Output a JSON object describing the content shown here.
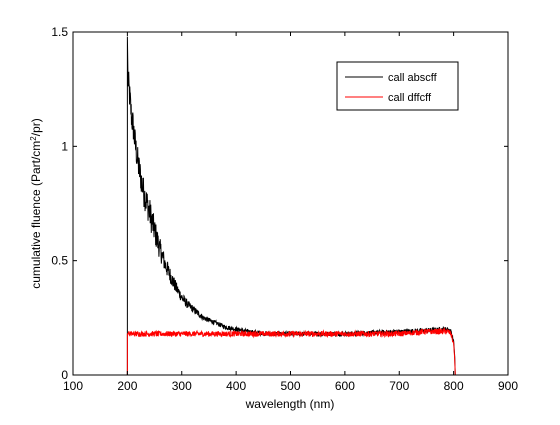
{
  "colors": {
    "figure_background": "#ffffff",
    "axes_background": "#ffffff",
    "axis_line": "#000000",
    "series_absorption": "#000000",
    "series_diffuse": "#ff0000"
  },
  "chart_data": {
    "type": "line",
    "title": "",
    "xlabel": "wavelength (nm)",
    "ylabel_parts": [
      "cumulative fluence (Part/cm",
      "2",
      "/pr)"
    ],
    "xlim": [
      100,
      900
    ],
    "ylim": [
      0,
      1.5
    ],
    "x_ticks": [
      100,
      200,
      300,
      400,
      500,
      600,
      700,
      800,
      900
    ],
    "y_ticks": [
      0,
      0.5,
      1,
      1.5
    ],
    "x_tick_labels": [
      "100",
      "200",
      "300",
      "400",
      "500",
      "600",
      "700",
      "800",
      "900"
    ],
    "y_tick_labels": [
      "0",
      "0.5",
      "1",
      "1.5"
    ],
    "grid": false,
    "legend_position": "top-right",
    "series": [
      {
        "name": "call abscff",
        "color": "#000000",
        "noise_amplitude": 0.04,
        "noise_decay": true,
        "x": [
          200,
          200,
          201,
          203,
          205,
          208,
          210,
          215,
          220,
          225,
          230,
          235,
          240,
          250,
          260,
          270,
          280,
          290,
          300,
          310,
          320,
          330,
          340,
          350,
          360,
          370,
          380,
          390,
          400,
          420,
          440,
          460,
          480,
          500,
          550,
          600,
          650,
          700,
          750,
          780,
          790,
          795,
          800,
          802,
          803
        ],
        "y": [
          0,
          1.48,
          1.3,
          1.25,
          1.2,
          1.12,
          1.1,
          1.0,
          0.92,
          0.86,
          0.8,
          0.76,
          0.72,
          0.63,
          0.55,
          0.48,
          0.43,
          0.38,
          0.34,
          0.31,
          0.29,
          0.27,
          0.25,
          0.24,
          0.23,
          0.22,
          0.21,
          0.205,
          0.2,
          0.19,
          0.185,
          0.18,
          0.18,
          0.18,
          0.18,
          0.18,
          0.185,
          0.19,
          0.195,
          0.2,
          0.2,
          0.19,
          0.15,
          0.08,
          0
        ]
      },
      {
        "name": "call dffcff",
        "color": "#ff0000",
        "noise_amplitude": 0.012,
        "noise_decay": false,
        "x": [
          200,
          200,
          202,
          250,
          300,
          350,
          400,
          450,
          500,
          550,
          600,
          650,
          700,
          750,
          780,
          790,
          795,
          800,
          802,
          803
        ],
        "y": [
          0,
          0.18,
          0.18,
          0.18,
          0.18,
          0.18,
          0.18,
          0.18,
          0.18,
          0.18,
          0.18,
          0.18,
          0.18,
          0.19,
          0.19,
          0.19,
          0.18,
          0.14,
          0.07,
          0
        ]
      }
    ]
  }
}
